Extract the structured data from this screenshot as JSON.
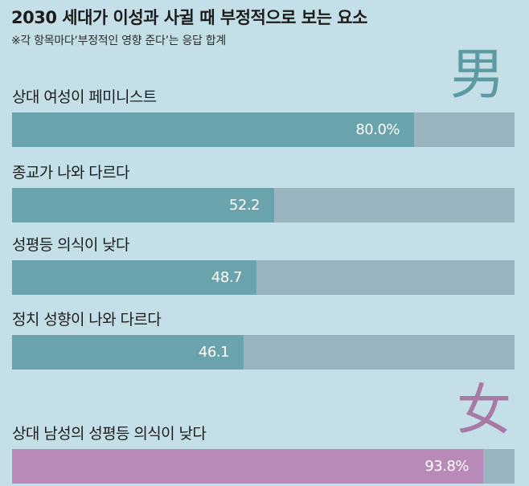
{
  "header": {
    "title": "2030 세대가 이성과 사귈 때 부정적으로 보는 요소",
    "subtitle": "※각 항목마다‘부정적인 영향 준다’는 응답 합계"
  },
  "male_mark": "男",
  "female_mark": "女",
  "colors": {
    "background": "#c4dfe7",
    "track": "#9bb5c0",
    "male_bar": "#6aa3ab",
    "female_bar": "#b98ab7"
  },
  "chart_data": {
    "type": "bar",
    "orientation": "horizontal",
    "title": "2030 세대가 이성과 사귈 때 부정적으로 보는 요소",
    "subtitle": "※각 항목마다‘부정적인 영향 준다’는 응답 합계",
    "xlim": [
      0,
      100
    ],
    "groups": [
      {
        "name": "男",
        "items": [
          {
            "label": "상대 여성이 페미니스트",
            "value": 80.0,
            "value_label": "80.0%"
          },
          {
            "label": "종교가 나와 다르다",
            "value": 52.2,
            "value_label": "52.2"
          },
          {
            "label": "성평등 의식이 낮다",
            "value": 48.7,
            "value_label": "48.7"
          },
          {
            "label": "정치 성향이 나와 다르다",
            "value": 46.1,
            "value_label": "46.1"
          }
        ]
      },
      {
        "name": "女",
        "items": [
          {
            "label": "상대 남성의 성평등 의식이 낮다",
            "value": 93.8,
            "value_label": "93.8%"
          }
        ]
      }
    ]
  }
}
